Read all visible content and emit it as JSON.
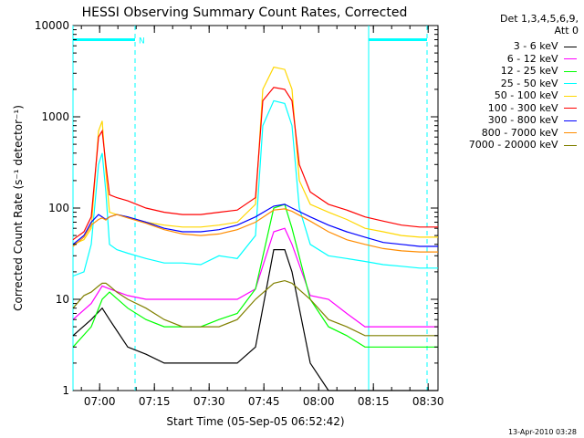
{
  "chart_data": {
    "type": "line",
    "title": "HESSI Observing Summary Count Rates, Corrected",
    "xlabel": "Start Time (05-Sep-05 06:52:42)",
    "ylabel": "Corrected Count Rate (s⁻¹ detector⁻¹)",
    "yscale": "log",
    "ylim": [
      1,
      10000
    ],
    "xlim_minutes_after_start": [
      0,
      100
    ],
    "x_ticks": [
      "07:00",
      "07:15",
      "07:30",
      "07:45",
      "08:00",
      "08:15",
      "08:30"
    ],
    "y_ticks": [
      "1",
      "10",
      "100",
      "1000",
      "10000"
    ],
    "legend_header": [
      "Det 1,3,4,5,6,9,",
      "Att 0"
    ],
    "annotation_marker": "N",
    "footer": "13-Apr-2010 03:28",
    "series": [
      {
        "name": "3 - 6 keV",
        "color": "#000000",
        "x": [
          0,
          5,
          8,
          10,
          15,
          20,
          25,
          30,
          35,
          40,
          45,
          50,
          55,
          58,
          60,
          65,
          70,
          75,
          80,
          85,
          90,
          95,
          100
        ],
        "y": [
          4,
          6,
          8,
          6,
          3,
          2.5,
          2,
          2,
          2,
          2,
          2,
          3,
          35,
          35,
          20,
          2,
          1,
          1,
          1,
          1,
          1,
          1,
          1
        ]
      },
      {
        "name": "6 - 12 keV",
        "color": "#ff00ff",
        "x": [
          0,
          5,
          8,
          10,
          15,
          20,
          25,
          30,
          35,
          40,
          45,
          50,
          55,
          58,
          60,
          65,
          70,
          75,
          80,
          85,
          90,
          95,
          100
        ],
        "y": [
          6,
          9,
          14,
          13,
          11,
          10,
          10,
          10,
          10,
          10,
          10,
          13,
          55,
          60,
          40,
          11,
          10,
          7,
          5,
          5,
          5,
          5,
          5
        ]
      },
      {
        "name": "12 - 25 keV",
        "color": "#00ff00",
        "x": [
          0,
          5,
          8,
          10,
          15,
          20,
          25,
          30,
          35,
          40,
          45,
          50,
          55,
          58,
          60,
          65,
          70,
          75,
          80,
          85,
          90,
          95,
          100
        ],
        "y": [
          3,
          5,
          10,
          12,
          8,
          6,
          5,
          5,
          5,
          6,
          7,
          13,
          100,
          110,
          60,
          10,
          5,
          4,
          3,
          3,
          3,
          3,
          3
        ]
      },
      {
        "name": "25 - 50 keV",
        "color": "#00ffff",
        "x": [
          0,
          3,
          5,
          7,
          8,
          9,
          10,
          12,
          15,
          20,
          25,
          30,
          35,
          40,
          45,
          50,
          52,
          55,
          58,
          60,
          62,
          65,
          70,
          75,
          80,
          85,
          90,
          95,
          100
        ],
        "y": [
          18,
          20,
          40,
          300,
          400,
          150,
          40,
          35,
          32,
          28,
          25,
          25,
          24,
          30,
          28,
          50,
          800,
          1500,
          1400,
          800,
          100,
          40,
          30,
          28,
          26,
          24,
          23,
          22,
          22
        ]
      },
      {
        "name": "50 - 100 keV",
        "color": "#ffd700",
        "x": [
          0,
          3,
          5,
          7,
          8,
          9,
          10,
          12,
          15,
          20,
          25,
          30,
          35,
          40,
          45,
          50,
          52,
          55,
          58,
          60,
          62,
          65,
          70,
          75,
          80,
          85,
          90,
          95,
          100
        ],
        "y": [
          40,
          45,
          60,
          700,
          900,
          250,
          90,
          85,
          80,
          70,
          65,
          62,
          62,
          65,
          70,
          110,
          2000,
          3500,
          3300,
          2000,
          200,
          110,
          90,
          75,
          60,
          55,
          50,
          48,
          48
        ]
      },
      {
        "name": "100 - 300 keV",
        "color": "#ff0000",
        "x": [
          0,
          3,
          5,
          7,
          8,
          9,
          10,
          12,
          15,
          20,
          25,
          30,
          35,
          40,
          45,
          50,
          52,
          55,
          58,
          60,
          62,
          65,
          70,
          75,
          80,
          85,
          90,
          95,
          100
        ],
        "y": [
          45,
          55,
          80,
          600,
          700,
          300,
          140,
          130,
          120,
          100,
          90,
          85,
          85,
          90,
          95,
          130,
          1500,
          2100,
          2000,
          1500,
          300,
          150,
          110,
          95,
          80,
          72,
          65,
          62,
          62
        ]
      },
      {
        "name": "300 - 800 keV",
        "color": "#0000ff",
        "x": [
          0,
          3,
          5,
          7,
          8,
          9,
          10,
          12,
          15,
          20,
          25,
          30,
          35,
          40,
          45,
          50,
          55,
          58,
          60,
          65,
          70,
          75,
          80,
          85,
          90,
          95,
          100
        ],
        "y": [
          40,
          50,
          70,
          85,
          80,
          75,
          80,
          85,
          80,
          70,
          60,
          55,
          55,
          58,
          65,
          80,
          105,
          110,
          100,
          80,
          65,
          55,
          48,
          42,
          40,
          38,
          38
        ]
      },
      {
        "name": "800 - 7000 keV",
        "color": "#ff8c00",
        "x": [
          0,
          3,
          5,
          7,
          8,
          9,
          10,
          12,
          15,
          20,
          25,
          30,
          35,
          40,
          45,
          50,
          55,
          58,
          60,
          65,
          70,
          75,
          80,
          85,
          90,
          95,
          100
        ],
        "y": [
          38,
          48,
          65,
          75,
          78,
          74,
          80,
          85,
          78,
          68,
          58,
          52,
          50,
          52,
          58,
          70,
          95,
          98,
          92,
          72,
          55,
          45,
          40,
          36,
          34,
          33,
          33
        ]
      },
      {
        "name": "7000 - 20000 keV",
        "color": "#808000",
        "x": [
          0,
          3,
          5,
          7,
          8,
          9,
          10,
          12,
          15,
          20,
          25,
          30,
          35,
          40,
          45,
          50,
          55,
          58,
          60,
          65,
          70,
          75,
          80,
          85,
          90,
          95,
          100
        ],
        "y": [
          8,
          11,
          12,
          14,
          15,
          15,
          14,
          12,
          10,
          8,
          6,
          5,
          5,
          5,
          6,
          10,
          15,
          16,
          15,
          10,
          6,
          5,
          4,
          4,
          4,
          4,
          4
        ]
      }
    ],
    "overlay_lines": {
      "color": "#00ffff",
      "horizontal_segments": [
        [
          0,
          17
        ],
        [
          81,
          97
        ]
      ],
      "horizontal_level": 7000,
      "vertical_solid": [
        0,
        81
      ],
      "vertical_dashed": [
        17,
        97
      ]
    }
  }
}
